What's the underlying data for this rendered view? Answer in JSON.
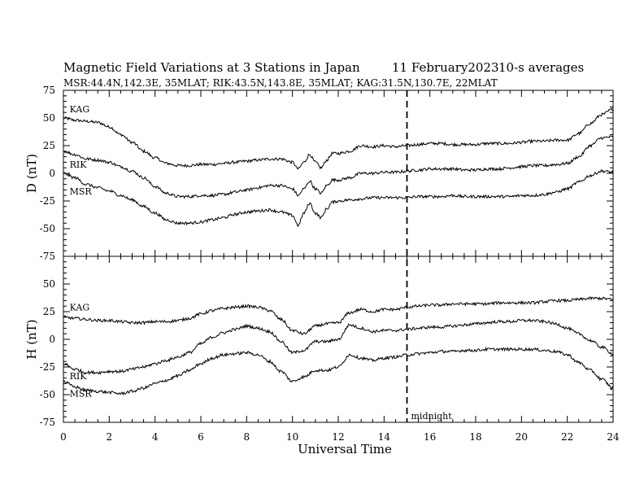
{
  "header": {
    "title": "Magnetic Field Variations at 3 Stations in Japan",
    "date": "11 February2023",
    "averaging": "10-s averages",
    "stations_line": "MSR:44.4N,142.3E, 35MLAT;  RIK:43.5N,143.8E, 35MLAT;  KAG:31.5N,130.7E, 22MLAT"
  },
  "annotation": {
    "midnight_label": "midnight",
    "midnight_ut": 15
  },
  "colors": {
    "line": "#000000",
    "background": "#ffffff"
  },
  "chart_data": [
    {
      "type": "line",
      "ylabel": "D (nT)",
      "ylim": [
        -75,
        75
      ],
      "yticks": [
        -75,
        -50,
        -25,
        0,
        25,
        50,
        75
      ],
      "ytick_labels": [
        "-75",
        "-50",
        "-25",
        "0",
        "25",
        "50",
        "75"
      ],
      "xlim": [
        0,
        24
      ],
      "x": [
        0,
        0.5,
        1,
        1.5,
        2,
        2.5,
        3,
        3.5,
        4,
        4.5,
        5,
        5.5,
        6,
        6.5,
        7,
        7.5,
        8,
        8.5,
        9,
        9.5,
        10,
        10.25,
        10.5,
        10.75,
        11,
        11.25,
        11.5,
        11.75,
        12,
        12.5,
        13,
        13.5,
        14,
        14.5,
        15,
        15.5,
        16,
        16.5,
        17,
        17.5,
        18,
        18.5,
        19,
        19.5,
        20,
        20.5,
        21,
        21.5,
        22,
        22.5,
        23,
        23.5,
        24
      ],
      "series": [
        {
          "name": "KAG",
          "label_x": 0.2,
          "label_y": 58,
          "values": [
            50,
            48,
            47,
            46,
            42,
            35,
            28,
            20,
            14,
            9,
            7,
            7,
            8,
            8,
            9,
            10,
            11,
            12,
            13,
            13,
            10,
            4,
            10,
            17,
            10,
            5,
            12,
            18,
            18,
            20,
            25,
            24,
            25,
            24,
            25,
            26,
            27,
            27,
            26,
            26,
            26,
            27,
            27,
            27,
            28,
            29,
            29,
            30,
            30,
            36,
            45,
            53,
            58
          ]
        },
        {
          "name": "RIK",
          "label_x": 0.2,
          "label_y": 8,
          "values": [
            20,
            17,
            13,
            12,
            10,
            6,
            2,
            -4,
            -12,
            -18,
            -21,
            -21,
            -20,
            -20,
            -19,
            -17,
            -15,
            -13,
            -11,
            -11,
            -14,
            -20,
            -14,
            -7,
            -14,
            -18,
            -11,
            -6,
            -6,
            -4,
            0,
            0,
            1,
            1,
            2,
            3,
            4,
            4,
            4,
            3,
            3,
            4,
            4,
            5,
            6,
            7,
            7,
            8,
            9,
            15,
            25,
            32,
            33
          ]
        },
        {
          "name": "MSR",
          "label_x": 0.2,
          "label_y": -16,
          "values": [
            0,
            -4,
            -10,
            -13,
            -16,
            -20,
            -24,
            -30,
            -36,
            -42,
            -45,
            -45,
            -44,
            -42,
            -40,
            -37,
            -35,
            -34,
            -33,
            -35,
            -38,
            -47,
            -36,
            -27,
            -36,
            -40,
            -32,
            -26,
            -25,
            -24,
            -23,
            -22,
            -22,
            -22,
            -22,
            -21,
            -21,
            -21,
            -20,
            -21,
            -21,
            -21,
            -21,
            -21,
            -20,
            -20,
            -19,
            -17,
            -14,
            -8,
            -2,
            2,
            1
          ]
        }
      ]
    },
    {
      "type": "line",
      "xlabel": "Universal Time",
      "ylabel": "H (nT)",
      "ylim": [
        -75,
        75
      ],
      "yticks": [
        -75,
        -50,
        -25,
        0,
        25,
        50
      ],
      "ytick_labels": [
        "-75",
        "-50",
        "-25",
        "0",
        "25",
        "50"
      ],
      "xlim": [
        0,
        24
      ],
      "xticks": [
        0,
        2,
        4,
        6,
        8,
        10,
        12,
        14,
        16,
        18,
        20,
        22,
        24
      ],
      "xtick_labels": [
        "0",
        "2",
        "4",
        "6",
        "8",
        "10",
        "12",
        "14",
        "16",
        "18",
        "20",
        "22",
        "24"
      ],
      "x": [
        0,
        0.5,
        1,
        1.5,
        2,
        2.5,
        3,
        3.5,
        4,
        4.5,
        5,
        5.5,
        6,
        6.5,
        7,
        7.5,
        8,
        8.5,
        9,
        9.5,
        10,
        10.5,
        11,
        11.5,
        12,
        12.5,
        13,
        13.5,
        14,
        14.5,
        15,
        15.5,
        16,
        16.5,
        17,
        17.5,
        18,
        18.5,
        19,
        19.5,
        20,
        20.5,
        21,
        21.5,
        22,
        22.5,
        23,
        23.5,
        24
      ],
      "series": [
        {
          "name": "KAG",
          "label_x": 0.2,
          "label_y": 29,
          "values": [
            20,
            19,
            18,
            17,
            17,
            16,
            15,
            15,
            16,
            16,
            17,
            19,
            23,
            26,
            28,
            29,
            30,
            29,
            26,
            18,
            8,
            5,
            12,
            14,
            15,
            24,
            27,
            25,
            27,
            27,
            29,
            30,
            31,
            31,
            32,
            32,
            32,
            32,
            33,
            33,
            33,
            33,
            34,
            35,
            35,
            36,
            37,
            37,
            36
          ]
        },
        {
          "name": "RIK",
          "label_x": 0.2,
          "label_y": -33,
          "values": [
            -22,
            -27,
            -30,
            -30,
            -29,
            -29,
            -27,
            -25,
            -22,
            -19,
            -16,
            -12,
            -4,
            2,
            6,
            9,
            12,
            10,
            7,
            -2,
            -12,
            -10,
            -2,
            -2,
            0,
            13,
            10,
            7,
            8,
            8,
            9,
            10,
            11,
            11,
            12,
            13,
            14,
            15,
            16,
            16,
            17,
            17,
            16,
            14,
            10,
            5,
            -1,
            -7,
            -13
          ]
        },
        {
          "name": "MSR",
          "label_x": 0.2,
          "label_y": -49,
          "values": [
            -38,
            -43,
            -46,
            -47,
            -48,
            -49,
            -47,
            -44,
            -40,
            -37,
            -33,
            -28,
            -22,
            -17,
            -14,
            -13,
            -12,
            -14,
            -20,
            -29,
            -38,
            -34,
            -28,
            -28,
            -25,
            -14,
            -17,
            -19,
            -17,
            -16,
            -14,
            -13,
            -12,
            -11,
            -11,
            -10,
            -10,
            -9,
            -9,
            -9,
            -9,
            -9,
            -10,
            -11,
            -14,
            -21,
            -28,
            -36,
            -44
          ]
        }
      ]
    }
  ]
}
